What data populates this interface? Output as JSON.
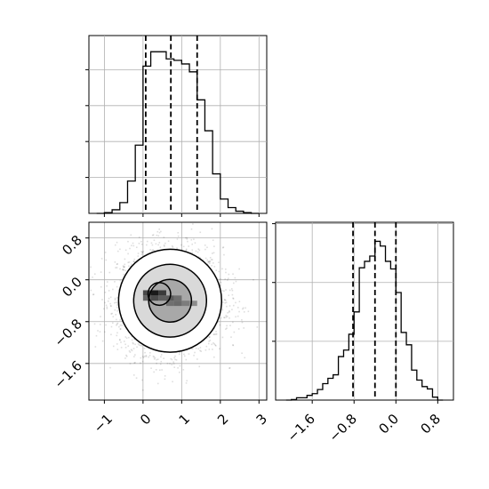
{
  "chart_data": [
    {
      "type": "histogram",
      "panel": "top-left",
      "variable_index": 0,
      "xlim": [
        -1.4,
        3.2
      ],
      "grid": true,
      "bin_edges": [
        -1.0,
        -0.8,
        -0.6,
        -0.4,
        -0.2,
        0.0,
        0.2,
        0.4,
        0.6,
        0.8,
        1.0,
        1.2,
        1.4,
        1.6,
        1.8,
        2.0,
        2.2,
        2.4,
        2.6,
        2.8,
        3.0
      ],
      "counts": [
        1,
        5,
        15,
        45,
        95,
        205,
        225,
        225,
        215,
        213,
        208,
        197,
        158,
        115,
        55,
        20,
        8,
        3,
        1,
        0
      ],
      "quantile_lines": [
        0.07,
        0.72,
        1.4
      ]
    },
    {
      "type": "scatter-density",
      "panel": "bottom-left",
      "xlim": [
        -1.4,
        3.2
      ],
      "ylim": [
        -2.3,
        1.1
      ],
      "grid": true,
      "x_ticks": [
        "−1",
        "0",
        "1",
        "2",
        "3"
      ],
      "x_tick_values": [
        -1,
        0,
        1,
        2,
        3
      ],
      "y_ticks": [
        "0.8",
        "0.0",
        "−0.8",
        "−1.6"
      ],
      "y_tick_values": [
        0.8,
        0.0,
        -0.8,
        -1.6
      ],
      "center": [
        0.7,
        -0.4
      ],
      "sigma": [
        0.65,
        0.48
      ],
      "contour_levels": [
        "inner",
        "middle",
        "outer"
      ]
    },
    {
      "type": "histogram",
      "panel": "bottom-right",
      "variable_index": 1,
      "xlim": [
        -2.3,
        1.1
      ],
      "grid": true,
      "x_ticks": [
        "−1.6",
        "−0.8",
        "0.0",
        "0.8"
      ],
      "x_tick_values": [
        -1.6,
        -0.8,
        0.0,
        0.8
      ],
      "bin_edges": [
        -2.0,
        -1.9,
        -1.8,
        -1.7,
        -1.6,
        -1.5,
        -1.4,
        -1.3,
        -1.2,
        -1.1,
        -1.0,
        -0.9,
        -0.8,
        -0.7,
        -0.6,
        -0.5,
        -0.4,
        -0.3,
        -0.2,
        -0.1,
        0.0,
        0.1,
        0.2,
        0.3,
        0.4,
        0.5,
        0.6,
        0.7,
        0.8
      ],
      "counts": [
        1,
        4,
        4,
        8,
        11,
        18,
        28,
        37,
        43,
        74,
        85,
        112,
        150,
        225,
        236,
        245,
        270,
        262,
        236,
        223,
        183,
        115,
        94,
        51,
        34,
        23,
        19,
        5
      ],
      "quantile_lines": [
        -0.82,
        -0.4,
        0.0
      ]
    }
  ]
}
